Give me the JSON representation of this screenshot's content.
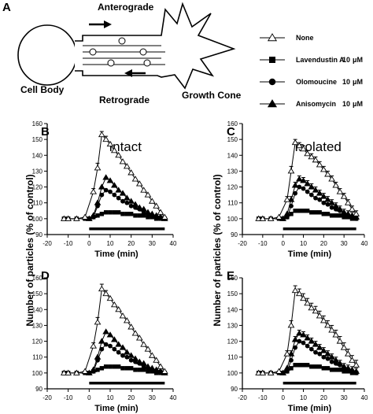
{
  "figure_label": "A",
  "schematic": {
    "anterograde": "Anterograde",
    "retrograde": "Retrograde",
    "cell_body": "Cell Body",
    "growth_cone": "Growth Cone"
  },
  "legend": [
    {
      "label": "None",
      "marker": "triangle-open",
      "conc": "",
      "unit": ""
    },
    {
      "label": "Lavendustin A",
      "marker": "square",
      "conc": "10",
      "unit": "μM"
    },
    {
      "label": "Olomoucine",
      "marker": "circle",
      "conc": "10",
      "unit": "μM"
    },
    {
      "label": "Anisomycin",
      "marker": "triangle",
      "conc": "10",
      "unit": "μM"
    }
  ],
  "shared_ylabel": "Number of particles (% of control)",
  "chart_data": [
    {
      "panel": "B",
      "title": "Intact",
      "type": "line",
      "xlabel": "Time (min)",
      "xlim": [
        -20,
        40
      ],
      "ylim": [
        90,
        160
      ],
      "xticks": [
        -20,
        -10,
        0,
        10,
        20,
        30,
        40
      ],
      "yticks": [
        90,
        100,
        110,
        120,
        130,
        140,
        150,
        160
      ],
      "bar": [
        0,
        36
      ],
      "series": [
        {
          "name": "None",
          "marker": "triangle-open",
          "x": [
            -12,
            -10,
            -6,
            -2,
            2,
            4,
            6,
            8,
            10,
            12,
            14,
            16,
            18,
            20,
            22,
            24,
            26,
            28,
            30,
            32,
            34,
            36
          ],
          "y": [
            100,
            100,
            100,
            101,
            117,
            132,
            153,
            150,
            147,
            143,
            140,
            136,
            133,
            129,
            125,
            122,
            118,
            115,
            111,
            108,
            104,
            101
          ],
          "err": [
            0,
            0,
            0,
            0,
            2,
            3,
            2,
            2,
            0,
            0,
            0,
            0,
            0,
            0,
            0,
            0,
            0,
            0,
            0,
            0,
            0,
            0
          ]
        },
        {
          "name": "Anisomycin",
          "marker": "triangle",
          "x": [
            0,
            2,
            4,
            6,
            8,
            10,
            12,
            14,
            16,
            18,
            20,
            22,
            24,
            26,
            28,
            30,
            32,
            34,
            36
          ],
          "y": [
            100,
            102,
            110,
            120,
            126,
            124,
            121,
            118,
            116,
            113,
            111,
            109,
            107,
            106,
            104,
            103,
            102,
            101,
            100
          ],
          "err": []
        },
        {
          "name": "Olomoucine",
          "marker": "circle",
          "x": [
            0,
            2,
            4,
            6,
            8,
            10,
            12,
            14,
            16,
            18,
            20,
            22,
            24,
            26,
            28,
            30,
            32,
            34,
            36
          ],
          "y": [
            100,
            101,
            108,
            115,
            118,
            117,
            115,
            113,
            111,
            110,
            108,
            107,
            106,
            104,
            103,
            102,
            101,
            101,
            100
          ],
          "err": []
        },
        {
          "name": "Lavendustin A",
          "marker": "square",
          "x": [
            -12,
            -10,
            -6,
            -2,
            0,
            2,
            4,
            6,
            8,
            10,
            12,
            14,
            16,
            18,
            20,
            22,
            24,
            26,
            28,
            30,
            32,
            34,
            36
          ],
          "y": [
            100,
            100,
            100,
            100,
            100,
            101,
            102,
            103,
            104,
            104,
            104,
            104,
            103,
            103,
            103,
            102,
            102,
            102,
            101,
            101,
            100,
            100,
            100
          ],
          "err": []
        }
      ]
    },
    {
      "panel": "C",
      "title": "Isolated",
      "type": "line",
      "xlabel": "Time (min)",
      "xlim": [
        -20,
        40
      ],
      "ylim": [
        90,
        160
      ],
      "xticks": [
        -20,
        -10,
        0,
        10,
        20,
        30,
        40
      ],
      "yticks": [
        90,
        100,
        110,
        120,
        130,
        140,
        150,
        160
      ],
      "bar": [
        0,
        36
      ],
      "series": [
        {
          "name": "None",
          "marker": "triangle-open",
          "x": [
            -12,
            -10,
            -6,
            -2,
            2,
            4,
            6,
            8,
            10,
            12,
            14,
            16,
            18,
            20,
            22,
            24,
            26,
            28,
            30,
            32,
            34,
            36
          ],
          "y": [
            100,
            100,
            100,
            101,
            112,
            130,
            148,
            146,
            144,
            141,
            139,
            137,
            134,
            131,
            128,
            125,
            121,
            117,
            114,
            110,
            106,
            103
          ],
          "err": [
            0,
            0,
            0,
            0,
            2,
            3,
            2,
            2,
            2,
            2,
            2,
            2,
            2,
            2,
            2,
            2,
            2,
            2,
            2,
            2,
            2,
            2
          ]
        },
        {
          "name": "Anisomycin",
          "marker": "triangle",
          "x": [
            0,
            2,
            4,
            6,
            8,
            10,
            12,
            14,
            16,
            18,
            20,
            22,
            24,
            26,
            28,
            30,
            32,
            34,
            36
          ],
          "y": [
            100,
            103,
            112,
            121,
            125,
            124,
            122,
            120,
            118,
            116,
            114,
            112,
            110,
            108,
            106,
            104,
            103,
            102,
            101
          ],
          "err": [
            0,
            0,
            2,
            2,
            2,
            2,
            2,
            2,
            2,
            2,
            2,
            2,
            2,
            2,
            2,
            2,
            2,
            2,
            2
          ]
        },
        {
          "name": "Olomoucine",
          "marker": "circle",
          "x": [
            0,
            2,
            4,
            6,
            8,
            10,
            12,
            14,
            16,
            18,
            20,
            22,
            24,
            26,
            28,
            30,
            32,
            34,
            36
          ],
          "y": [
            100,
            101,
            108,
            116,
            120,
            119,
            117,
            115,
            113,
            112,
            110,
            109,
            107,
            106,
            105,
            103,
            102,
            101,
            100
          ],
          "err": []
        },
        {
          "name": "Lavendustin A",
          "marker": "square",
          "x": [
            -12,
            -10,
            -6,
            -2,
            0,
            2,
            4,
            6,
            8,
            10,
            12,
            14,
            16,
            18,
            20,
            22,
            24,
            26,
            28,
            30,
            32,
            34,
            36
          ],
          "y": [
            100,
            100,
            100,
            100,
            100,
            101,
            103,
            105,
            105,
            105,
            105,
            104,
            104,
            104,
            103,
            103,
            102,
            102,
            102,
            101,
            101,
            100,
            100
          ],
          "err": []
        }
      ]
    },
    {
      "panel": "D",
      "title": "",
      "type": "line",
      "xlabel": "Time (min)",
      "xlim": [
        -20,
        40
      ],
      "ylim": [
        90,
        160
      ],
      "xticks": [
        -20,
        -10,
        0,
        10,
        20,
        30,
        40
      ],
      "yticks": [
        90,
        100,
        110,
        120,
        130,
        140,
        150,
        160
      ],
      "bar": [
        0,
        36
      ],
      "series": [
        {
          "name": "None",
          "marker": "triangle-open",
          "x": [
            -12,
            -10,
            -6,
            -2,
            2,
            4,
            6,
            8,
            10,
            12,
            14,
            16,
            18,
            20,
            22,
            24,
            26,
            28,
            30,
            32,
            34,
            36
          ],
          "y": [
            100,
            100,
            100,
            101,
            117,
            132,
            153,
            150,
            147,
            143,
            140,
            136,
            133,
            129,
            125,
            122,
            118,
            115,
            111,
            108,
            104,
            101
          ],
          "err": [
            0,
            0,
            0,
            0,
            2,
            3,
            3,
            2,
            0,
            0,
            0,
            0,
            0,
            0,
            0,
            0,
            0,
            0,
            0,
            0,
            0,
            0
          ]
        },
        {
          "name": "Anisomycin",
          "marker": "triangle",
          "x": [
            0,
            2,
            4,
            6,
            8,
            10,
            12,
            14,
            16,
            18,
            20,
            22,
            24,
            26,
            28,
            30,
            32,
            34,
            36
          ],
          "y": [
            100,
            102,
            110,
            120,
            126,
            124,
            121,
            118,
            116,
            113,
            111,
            109,
            107,
            106,
            104,
            103,
            102,
            101,
            100
          ],
          "err": []
        },
        {
          "name": "Olomoucine",
          "marker": "circle",
          "x": [
            0,
            2,
            4,
            6,
            8,
            10,
            12,
            14,
            16,
            18,
            20,
            22,
            24,
            26,
            28,
            30,
            32,
            34,
            36
          ],
          "y": [
            100,
            101,
            108,
            115,
            118,
            117,
            115,
            113,
            111,
            110,
            108,
            107,
            106,
            104,
            103,
            102,
            101,
            101,
            100
          ],
          "err": []
        },
        {
          "name": "Lavendustin A",
          "marker": "square",
          "x": [
            -12,
            -10,
            -6,
            -2,
            0,
            2,
            4,
            6,
            8,
            10,
            12,
            14,
            16,
            18,
            20,
            22,
            24,
            26,
            28,
            30,
            32,
            34,
            36
          ],
          "y": [
            100,
            100,
            100,
            100,
            100,
            101,
            102,
            103,
            104,
            104,
            104,
            104,
            103,
            103,
            103,
            102,
            102,
            102,
            101,
            101,
            100,
            100,
            100
          ],
          "err": []
        }
      ]
    },
    {
      "panel": "E",
      "title": "",
      "type": "line",
      "xlabel": "Time (min)",
      "xlim": [
        -20,
        40
      ],
      "ylim": [
        90,
        160
      ],
      "xticks": [
        -20,
        -10,
        0,
        10,
        20,
        30,
        40
      ],
      "yticks": [
        90,
        100,
        110,
        120,
        130,
        140,
        150,
        160
      ],
      "bar": [
        0,
        36
      ],
      "series": [
        {
          "name": "None",
          "marker": "triangle-open",
          "x": [
            -12,
            -10,
            -6,
            -2,
            2,
            4,
            6,
            8,
            10,
            12,
            14,
            16,
            18,
            20,
            22,
            24,
            26,
            28,
            30,
            32,
            34,
            36
          ],
          "y": [
            100,
            100,
            100,
            101,
            112,
            130,
            152,
            150,
            147,
            144,
            141,
            139,
            136,
            133,
            130,
            127,
            124,
            120,
            116,
            112,
            108,
            105
          ],
          "err": [
            0,
            0,
            0,
            0,
            2,
            3,
            3,
            3,
            3,
            3,
            3,
            3,
            3,
            3,
            3,
            3,
            3,
            3,
            3,
            3,
            3,
            3
          ]
        },
        {
          "name": "Anisomycin",
          "marker": "triangle",
          "x": [
            0,
            2,
            4,
            6,
            8,
            10,
            12,
            14,
            16,
            18,
            20,
            22,
            24,
            26,
            28,
            30,
            32,
            34,
            36
          ],
          "y": [
            100,
            103,
            112,
            121,
            125,
            124,
            122,
            120,
            118,
            116,
            114,
            112,
            110,
            108,
            106,
            104,
            103,
            102,
            101
          ],
          "err": [
            0,
            0,
            2,
            2,
            2,
            2,
            2,
            2,
            2,
            2,
            2,
            2,
            2,
            2,
            2,
            2,
            2,
            2,
            2
          ]
        },
        {
          "name": "Olomoucine",
          "marker": "circle",
          "x": [
            0,
            2,
            4,
            6,
            8,
            10,
            12,
            14,
            16,
            18,
            20,
            22,
            24,
            26,
            28,
            30,
            32,
            34,
            36
          ],
          "y": [
            100,
            101,
            108,
            116,
            120,
            119,
            117,
            115,
            113,
            112,
            110,
            109,
            107,
            106,
            105,
            103,
            102,
            101,
            100
          ],
          "err": []
        },
        {
          "name": "Lavendustin A",
          "marker": "square",
          "x": [
            -12,
            -10,
            -6,
            -2,
            0,
            2,
            4,
            6,
            8,
            10,
            12,
            14,
            16,
            18,
            20,
            22,
            24,
            26,
            28,
            30,
            32,
            34,
            36
          ],
          "y": [
            100,
            100,
            100,
            100,
            100,
            101,
            103,
            105,
            105,
            105,
            105,
            104,
            104,
            104,
            103,
            103,
            102,
            102,
            102,
            101,
            101,
            100,
            100
          ],
          "err": []
        }
      ]
    }
  ]
}
